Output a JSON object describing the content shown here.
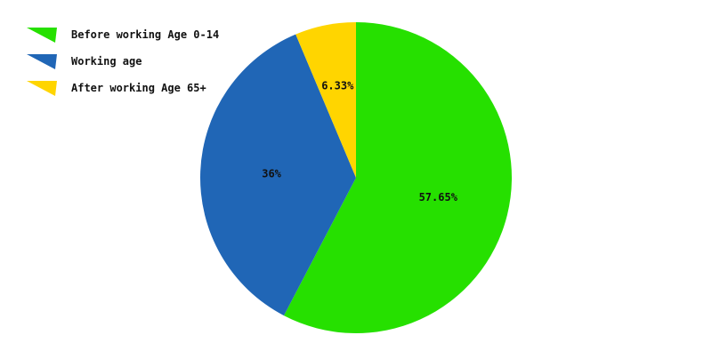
{
  "chart_data": {
    "type": "pie",
    "legend_position": "top-left",
    "categories": [
      "Before working Age 0-14",
      "Working age",
      "After working Age 65+"
    ],
    "values": [
      57.65,
      36,
      6.33
    ],
    "labels": [
      "57.65%",
      "36%",
      "6.33%"
    ],
    "colors": [
      "#26e000",
      "#2066b6",
      "#ffd500"
    ]
  }
}
